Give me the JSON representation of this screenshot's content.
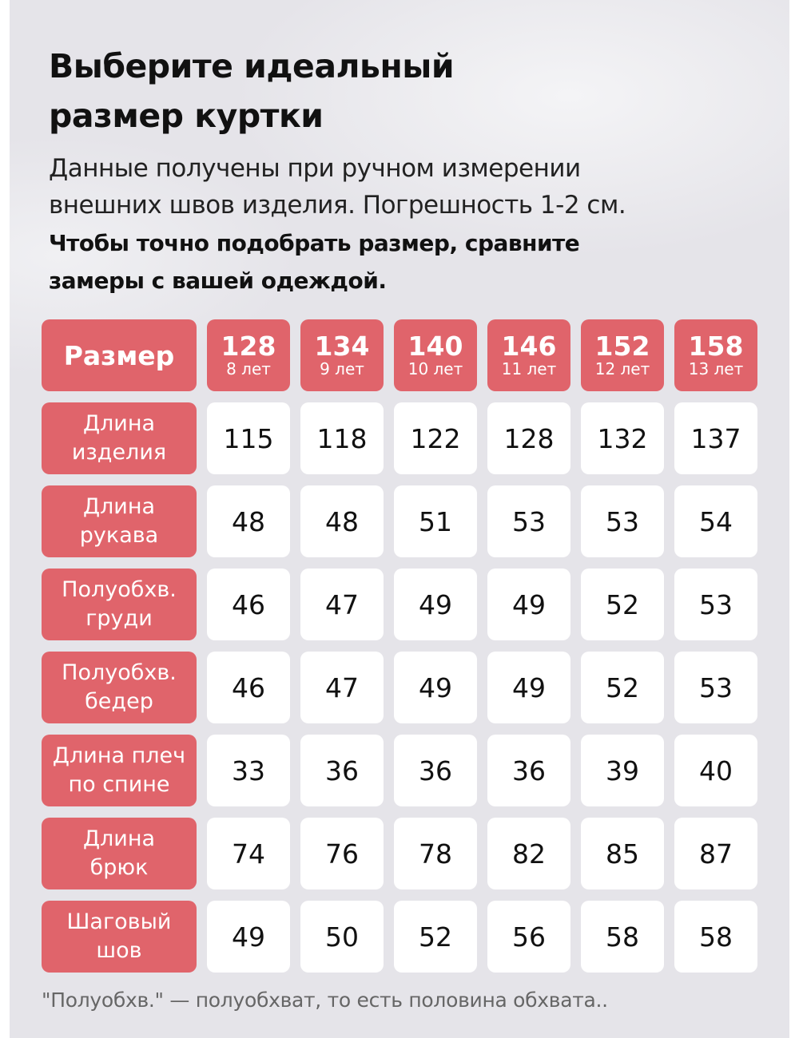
{
  "title": [
    "Выберите идеальный",
    "размер куртки"
  ],
  "subtitle": [
    "Данные получены при ручном измерении",
    "внешних швов изделия. Погрешность 1-2 см."
  ],
  "note_bold": [
    "Чтобы точно подобрать размер, сравните",
    "замеры с вашей одеждой."
  ],
  "colors": {
    "accent": "#e0646b",
    "background": "#e5e4e9",
    "cell": "#ffffff"
  },
  "table": {
    "header_label": "Размер",
    "sizes": [
      {
        "size": "128",
        "age": "8 лет"
      },
      {
        "size": "134",
        "age": "9 лет"
      },
      {
        "size": "140",
        "age": "10 лет"
      },
      {
        "size": "146",
        "age": "11 лет"
      },
      {
        "size": "152",
        "age": "12 лет"
      },
      {
        "size": "158",
        "age": "13 лет"
      }
    ],
    "rows": [
      {
        "label": [
          "Длина",
          "изделия"
        ],
        "values": [
          "115",
          "118",
          "122",
          "128",
          "132",
          "137"
        ]
      },
      {
        "label": [
          "Длина",
          "рукава"
        ],
        "values": [
          "48",
          "48",
          "51",
          "53",
          "53",
          "54"
        ]
      },
      {
        "label": [
          "Полуобхв.",
          "груди"
        ],
        "values": [
          "46",
          "47",
          "49",
          "49",
          "52",
          "53"
        ]
      },
      {
        "label": [
          "Полуобхв.",
          "бедер"
        ],
        "values": [
          "46",
          "47",
          "49",
          "49",
          "52",
          "53"
        ]
      },
      {
        "label": [
          "Длина плеч",
          "по спине"
        ],
        "values": [
          "33",
          "36",
          "36",
          "36",
          "39",
          "40"
        ]
      },
      {
        "label": [
          "Длина",
          "брюк"
        ],
        "values": [
          "74",
          "76",
          "78",
          "82",
          "85",
          "87"
        ]
      },
      {
        "label": [
          "Шаговый",
          "шов"
        ],
        "values": [
          "49",
          "50",
          "52",
          "56",
          "58",
          "58"
        ]
      }
    ]
  },
  "footnote": "\"Полуобхв.\" — полуобхват, то есть половина обхвата.."
}
